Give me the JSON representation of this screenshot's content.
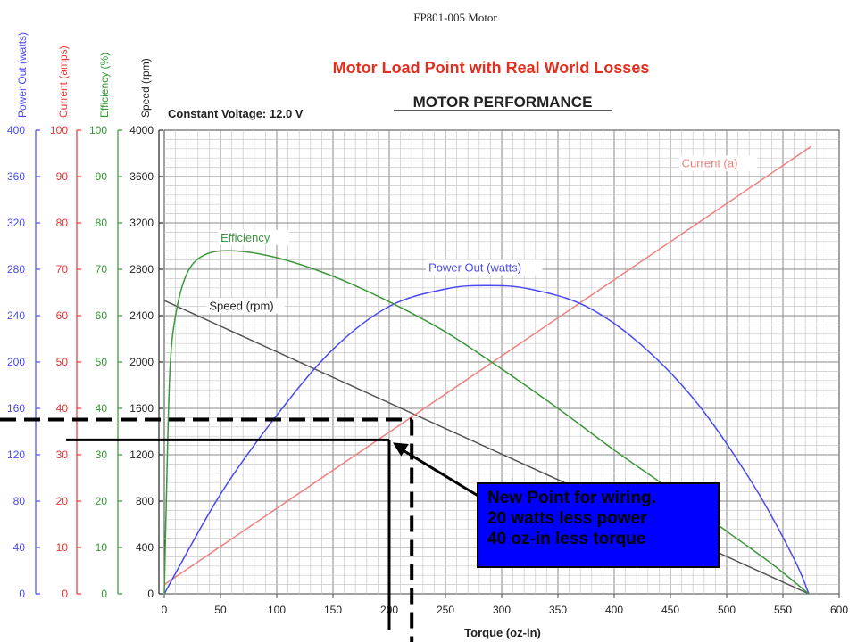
{
  "slide": {
    "top_title": "FP801-005 Motor",
    "subtitle": "Motor Load Point with Real World Losses",
    "annotation": [
      "New Point for wiring.",
      "20 watts less power",
      "40 oz-in less torque"
    ]
  },
  "chart_data": {
    "type": "line",
    "title": "MOTOR PERFORMANCE",
    "subtitle": "Constant Voltage: 12.0 V",
    "xlabel": "Torque (oz-in)",
    "xlim": [
      0,
      600
    ],
    "xticks": [
      0,
      50,
      100,
      150,
      200,
      250,
      300,
      350,
      400,
      450,
      500,
      550,
      600
    ],
    "grid": true,
    "axes": [
      {
        "label": "Power Out (watts)",
        "color": "#4a4af0",
        "range": [
          0,
          400
        ],
        "ticks": [
          0,
          40,
          80,
          120,
          160,
          200,
          240,
          280,
          320,
          360,
          400
        ]
      },
      {
        "label": "Current (amps)",
        "color": "#ee3333",
        "range": [
          0,
          100
        ],
        "ticks": [
          0,
          10,
          20,
          30,
          40,
          50,
          60,
          70,
          80,
          90,
          100
        ]
      },
      {
        "label": "Efficiency (%)",
        "color": "#339933",
        "range": [
          0,
          100
        ],
        "ticks": [
          0,
          10,
          20,
          30,
          40,
          50,
          60,
          70,
          80,
          90,
          100
        ]
      },
      {
        "label": "Speed (rpm)",
        "color": "#222222",
        "range": [
          0,
          4000
        ],
        "ticks": [
          0,
          400,
          800,
          1200,
          1600,
          2000,
          2400,
          2800,
          3200,
          3600,
          4000
        ]
      }
    ],
    "series": [
      {
        "name": "Speed (rpm)",
        "axis": 3,
        "color": "#555555",
        "labelAt": [
          40,
          2450
        ],
        "x": [
          0,
          573
        ],
        "y": [
          2530,
          0
        ]
      },
      {
        "name": "Current (a)",
        "axis": 1,
        "color": "#f08080",
        "labelAt": [
          460,
          92
        ],
        "x": [
          0,
          575
        ],
        "y": [
          2,
          96.5
        ]
      },
      {
        "name": "Power Out (watts)",
        "axis": 0,
        "color": "#4a4af0",
        "labelAt": [
          235,
          278
        ],
        "x": [
          0,
          50,
          100,
          150,
          200,
          250,
          287,
          325,
          375,
          425,
          475,
          525,
          560,
          573
        ],
        "y": [
          0,
          86,
          154,
          211,
          248,
          263,
          266,
          263,
          248,
          214,
          163,
          92,
          30,
          0
        ]
      },
      {
        "name": "Efficiency",
        "axis": 2,
        "color": "#3c963c",
        "labelAt": [
          50,
          76
        ],
        "x": [
          0,
          2,
          5,
          10,
          20,
          35,
          60,
          100,
          150,
          200,
          250,
          300,
          350,
          400,
          450,
          500,
          540,
          573
        ],
        "y": [
          0,
          22,
          48,
          60,
          69,
          73,
          74,
          72.5,
          68.5,
          63,
          56.5,
          48.5,
          40,
          31,
          22.5,
          13.5,
          6.5,
          0
        ]
      }
    ],
    "overlays": {
      "solid_current_level": 33.2,
      "solid_torque": 200,
      "dashed_current_level": 37.6,
      "dashed_torque": 220
    }
  }
}
